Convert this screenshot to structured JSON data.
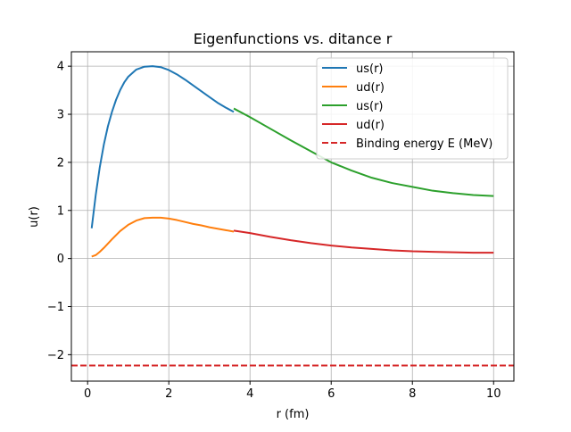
{
  "chart_data": {
    "type": "line",
    "title": "Eigenfunctions vs. ditance r",
    "xlabel": "r (fm)",
    "ylabel": "u(r)",
    "xlim": [
      -0.4,
      10.5
    ],
    "ylim": [
      -2.55,
      4.3
    ],
    "xticks": [
      0,
      2,
      4,
      6,
      8,
      10
    ],
    "xtick_labels": [
      "0",
      "2",
      "4",
      "6",
      "8",
      "10"
    ],
    "yticks": [
      -2,
      -1,
      0,
      1,
      2,
      3,
      4
    ],
    "ytick_labels": [
      "−2",
      "−1",
      "0",
      "1",
      "2",
      "3",
      "4"
    ],
    "grid": true,
    "legend_position": "top-right",
    "series": [
      {
        "name": "us(r)",
        "color": "#1f77b4",
        "style": "solid",
        "x": [
          0.1,
          0.2,
          0.3,
          0.4,
          0.5,
          0.6,
          0.7,
          0.8,
          0.9,
          1.0,
          1.2,
          1.4,
          1.6,
          1.8,
          2.0,
          2.2,
          2.4,
          2.6,
          2.8,
          3.0,
          3.2,
          3.4,
          3.6
        ],
        "y": [
          0.63,
          1.32,
          1.9,
          2.37,
          2.75,
          3.05,
          3.3,
          3.5,
          3.66,
          3.78,
          3.93,
          3.99,
          4.0,
          3.98,
          3.92,
          3.83,
          3.72,
          3.6,
          3.48,
          3.36,
          3.24,
          3.14,
          3.05
        ]
      },
      {
        "name": "ud(r)",
        "color": "#ff7f0e",
        "style": "solid",
        "x": [
          0.1,
          0.2,
          0.3,
          0.4,
          0.5,
          0.6,
          0.8,
          1.0,
          1.2,
          1.4,
          1.6,
          1.8,
          2.0,
          2.2,
          2.4,
          2.6,
          2.8,
          3.0,
          3.2,
          3.4,
          3.6
        ],
        "y": [
          0.04,
          0.07,
          0.14,
          0.22,
          0.31,
          0.4,
          0.57,
          0.7,
          0.79,
          0.84,
          0.85,
          0.85,
          0.83,
          0.8,
          0.76,
          0.72,
          0.69,
          0.65,
          0.62,
          0.59,
          0.56
        ]
      },
      {
        "name": "us(r)",
        "color": "#2ca02c",
        "style": "solid",
        "x": [
          3.6,
          4.0,
          4.5,
          5.0,
          5.5,
          6.0,
          6.5,
          7.0,
          7.5,
          8.0,
          8.5,
          9.0,
          9.5,
          10.0
        ],
        "y": [
          3.12,
          2.94,
          2.7,
          2.46,
          2.23,
          2.0,
          1.83,
          1.68,
          1.57,
          1.49,
          1.41,
          1.36,
          1.32,
          1.3
        ]
      },
      {
        "name": "ud(r)",
        "color": "#d62728",
        "style": "solid",
        "x": [
          3.6,
          4.0,
          4.5,
          5.0,
          5.5,
          6.0,
          6.5,
          7.0,
          7.5,
          8.0,
          8.5,
          9.0,
          9.5,
          10.0
        ],
        "y": [
          0.58,
          0.53,
          0.45,
          0.38,
          0.32,
          0.27,
          0.23,
          0.2,
          0.17,
          0.15,
          0.14,
          0.13,
          0.12,
          0.12
        ]
      },
      {
        "name": "Binding energy E (MeV)",
        "color": "#d62728",
        "style": "dashed",
        "type": "hline",
        "y_value": -2.224
      }
    ]
  }
}
